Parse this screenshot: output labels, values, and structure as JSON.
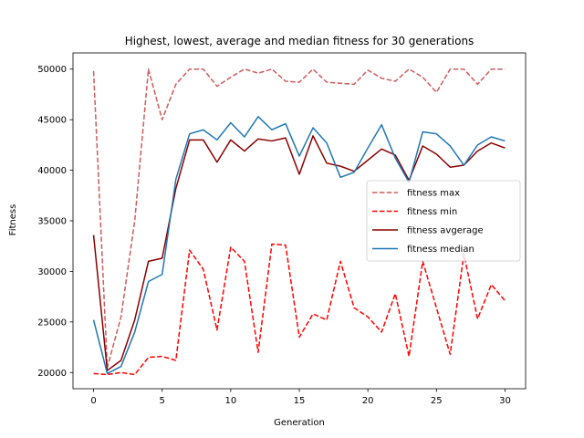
{
  "chart_data": {
    "type": "line",
    "title": "Highest, lowest, average and median fitness for 30 generations",
    "xlabel": "Generation",
    "ylabel": "Fitness",
    "xlim": [
      -1.5,
      31.5
    ],
    "ylim": [
      18400,
      51600
    ],
    "xticks": [
      0,
      5,
      10,
      15,
      20,
      25,
      30
    ],
    "yticks": [
      20000,
      25000,
      30000,
      35000,
      40000,
      45000,
      50000
    ],
    "grid": false,
    "legend_position": "center-right",
    "x": [
      0,
      1,
      2,
      3,
      4,
      5,
      6,
      7,
      8,
      9,
      10,
      11,
      12,
      13,
      14,
      15,
      16,
      17,
      18,
      19,
      20,
      21,
      22,
      23,
      24,
      25,
      26,
      27,
      28,
      29,
      30
    ],
    "series": [
      {
        "name": "fitness max",
        "color": "#cd5c5c",
        "style": "dashed",
        "values": [
          49800,
          20500,
          25500,
          35000,
          50000,
          45000,
          48500,
          50000,
          50000,
          48300,
          49200,
          50000,
          49600,
          50000,
          48800,
          48700,
          50000,
          48700,
          48600,
          48500,
          49900,
          49100,
          48800,
          50000,
          49200,
          47700,
          50000,
          50000,
          48500,
          50000,
          50000
        ]
      },
      {
        "name": "fitness min",
        "color": "#ff0000",
        "style": "dashed",
        "values": [
          19900,
          19800,
          20000,
          19800,
          21500,
          21600,
          21200,
          32100,
          30200,
          24200,
          32400,
          31000,
          22000,
          32700,
          32600,
          23500,
          25800,
          25200,
          31000,
          26400,
          25500,
          24000,
          27800,
          21600,
          31000,
          26400,
          21800,
          31700,
          25300,
          28700,
          27100
        ]
      },
      {
        "name": "fitness avgerage",
        "color": "#8b0000",
        "style": "solid",
        "values": [
          33600,
          20200,
          21200,
          25200,
          31000,
          31300,
          38200,
          43000,
          43000,
          40800,
          43000,
          41900,
          43100,
          42900,
          43200,
          39600,
          43400,
          40700,
          40400,
          39900,
          41000,
          42100,
          41500,
          39000,
          42400,
          41600,
          40300,
          40500,
          41900,
          42700,
          42200
        ]
      },
      {
        "name": "fitness median",
        "color": "#1f77b4",
        "style": "solid",
        "values": [
          25200,
          19900,
          20600,
          24000,
          29000,
          29700,
          39100,
          43600,
          44000,
          43000,
          44700,
          43300,
          45300,
          44000,
          44600,
          41400,
          44200,
          42700,
          39300,
          39800,
          42200,
          44500,
          41200,
          38800,
          43800,
          43600,
          42400,
          40500,
          42500,
          43300,
          42900
        ]
      }
    ]
  }
}
